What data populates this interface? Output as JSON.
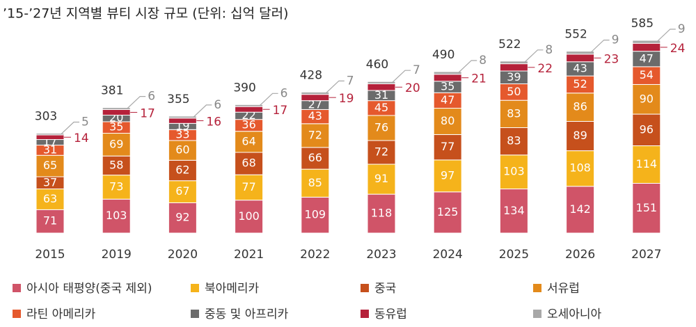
{
  "chart_data": {
    "type": "stacked-bar",
    "title": "’15-’27년 지역별 뷰티 시장 규모 (단위: 십억 달러)",
    "categories": [
      "2015",
      "2019",
      "2020",
      "2021",
      "2022",
      "2023",
      "2024",
      "2025",
      "2026",
      "2027"
    ],
    "series": [
      {
        "name": "아시아 태평양(중국 제외)",
        "color": "#d05468",
        "values": [
          71,
          103,
          92,
          100,
          109,
          118,
          125,
          134,
          142,
          151
        ]
      },
      {
        "name": "북아메리카",
        "color": "#f5b31b",
        "values": [
          63,
          73,
          67,
          77,
          85,
          91,
          97,
          103,
          108,
          114
        ]
      },
      {
        "name": "중국",
        "color": "#c6501c",
        "values": [
          37,
          58,
          62,
          68,
          66,
          72,
          77,
          83,
          89,
          96
        ]
      },
      {
        "name": "서유럽",
        "color": "#e38a1b",
        "values": [
          65,
          69,
          60,
          64,
          72,
          76,
          80,
          83,
          86,
          90
        ]
      },
      {
        "name": "라틴 아메리카",
        "color": "#e5592d",
        "values": [
          31,
          35,
          33,
          36,
          43,
          45,
          47,
          50,
          52,
          54
        ]
      },
      {
        "name": "중동 및 아프리카",
        "color": "#6b6b6b",
        "values": [
          17,
          20,
          19,
          22,
          27,
          31,
          35,
          39,
          43,
          47
        ]
      },
      {
        "name": "동유럽",
        "color": "#b5213a",
        "values": [
          14,
          17,
          16,
          17,
          19,
          20,
          21,
          22,
          23,
          24
        ]
      },
      {
        "name": "오세아니아",
        "color": "#a8a8a8",
        "values": [
          5,
          6,
          6,
          6,
          7,
          7,
          8,
          8,
          9,
          9
        ]
      }
    ],
    "totals": [
      303,
      381,
      355,
      390,
      428,
      460,
      490,
      522,
      552,
      585
    ]
  }
}
